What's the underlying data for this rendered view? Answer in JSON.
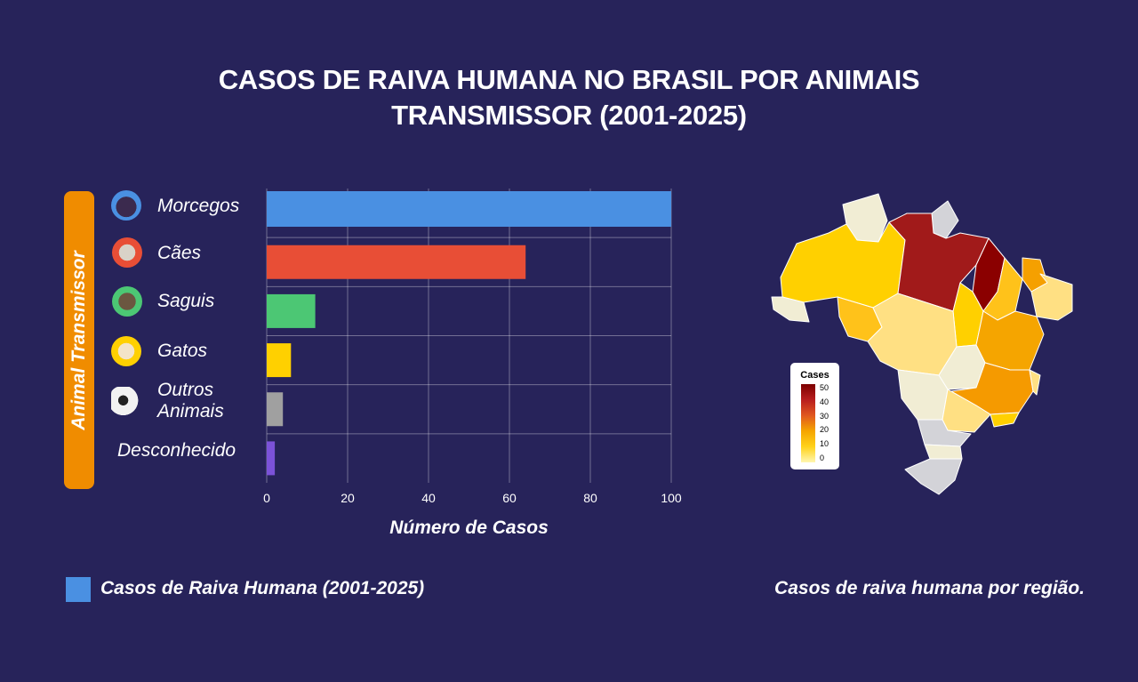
{
  "title": {
    "line1": "CASOS DE RAIVA HUMANA NO BRASIL POR ANIMAIS",
    "line2": "TRANSMISSOR (2001-2025)"
  },
  "chart_data": {
    "type": "bar",
    "orientation": "horizontal",
    "title": "CASOS DE RAIVA HUMANA NO BRASIL POR ANIMAIS TRANSMISSOR (2001-2025)",
    "xlabel": "Número de Casos",
    "ylabel": "Animal Transmissor",
    "xlim": [
      0,
      100
    ],
    "xticks": [
      0,
      20,
      40,
      60,
      80,
      100
    ],
    "grid": true,
    "legend_position": "bottom-left",
    "categories": [
      "Morcegos",
      "Cães",
      "Saguis",
      "Gatos",
      "Outros Animais",
      "Desconhecido"
    ],
    "series": [
      {
        "name": "Casos de Raiva Humana (2001-2025)",
        "values": [
          100,
          64,
          12,
          6,
          4,
          2
        ]
      }
    ],
    "bar_colors": [
      "#4a90e2",
      "#e84e36",
      "#4cc774",
      "#ffd000",
      "#a0a0a0",
      "#7b52d8"
    ]
  },
  "category_icons": [
    "bat-icon",
    "dog-icon",
    "marmoset-icon",
    "cat-icon",
    "cow-icon",
    ""
  ],
  "legend": {
    "label": "Casos de Raiva Humana (2001-2025)",
    "color": "#4a90e2"
  },
  "map": {
    "caption": "Casos de raiva humana por região.",
    "colorbar": {
      "title": "Cases",
      "ticks": [
        "50",
        "40",
        "30",
        "20",
        "10",
        "0"
      ]
    }
  }
}
